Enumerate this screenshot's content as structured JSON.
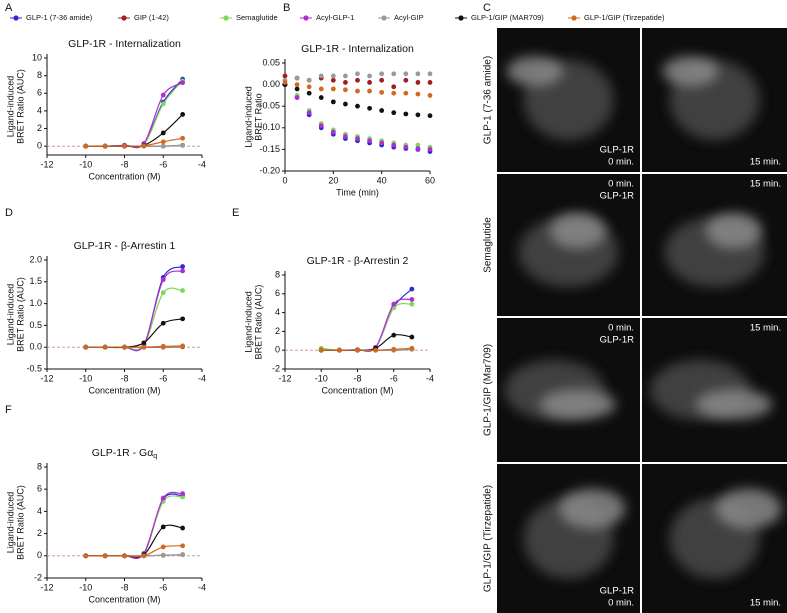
{
  "chart_data": [
    {
      "type": "line",
      "panel": "A",
      "title": "GLP-1R - Internalization",
      "xlabel": "Concentration  (M)",
      "ylabel": [
        "Ligand-induced",
        "BRET Ratio (AUC)"
      ],
      "x": [
        -10,
        -9,
        -8,
        -7,
        -6,
        -5
      ],
      "xlim": [
        -12,
        -4
      ],
      "xticks": [
        -12,
        -10,
        -8,
        -6,
        -4
      ],
      "ylim": [
        -1,
        10
      ],
      "yticks": [
        0,
        2,
        4,
        6,
        8,
        10
      ],
      "smooth": true,
      "zero_line": true,
      "series": [
        {
          "name": "GLP-1 (7-36 amide)",
          "color": "#2b2bd0",
          "values": [
            0,
            0,
            0.1,
            0.3,
            5.0,
            7.6
          ]
        },
        {
          "name": "GIP (1-42)",
          "color": "#a01e1e",
          "values": [
            0,
            0,
            0,
            0,
            0,
            0.1
          ]
        },
        {
          "name": "Semaglutide",
          "color": "#7fd858",
          "values": [
            0,
            0,
            0.1,
            0.2,
            4.8,
            7.4
          ]
        },
        {
          "name": "Acyl-GLP-1",
          "color": "#b02ed0",
          "values": [
            0,
            0,
            0.1,
            0.3,
            5.8,
            7.2
          ]
        },
        {
          "name": "Acyl-GIP",
          "color": "#9a9a9a",
          "values": [
            0,
            0,
            0,
            0,
            0,
            0.1
          ]
        },
        {
          "name": "GLP-1/GIP (MAR709)",
          "color": "#111111",
          "values": [
            0,
            0,
            0,
            0.1,
            1.5,
            3.6
          ]
        },
        {
          "name": "GLP-1/GIP (Tirzepatide)",
          "color": "#d2691e",
          "values": [
            0,
            0,
            0,
            0.05,
            0.5,
            0.9
          ]
        }
      ]
    },
    {
      "type": "scatter",
      "panel": "B",
      "title": "GLP-1R - Internalization",
      "xlabel": "Time (min)",
      "ylabel": [
        "Ligand-induced",
        "BRET Ratio"
      ],
      "x": [
        0,
        5,
        10,
        15,
        20,
        25,
        30,
        35,
        40,
        45,
        50,
        55,
        60
      ],
      "xlim": [
        0,
        60
      ],
      "xticks": [
        0,
        20,
        40,
        60
      ],
      "ylim": [
        -0.2,
        0.05
      ],
      "yticks": [
        {
          "value": -0.2,
          "label": "-0.20"
        },
        -0.15,
        {
          "value": -0.1,
          "label": "-0.10"
        },
        -0.05,
        {
          "value": 0,
          "label": "0.00"
        },
        0.05
      ],
      "zero_line": false,
      "series": [
        {
          "name": "GLP-1 (7-36 amide)",
          "color": "#2b2bd0",
          "values": [
            0,
            -0.03,
            -0.07,
            -0.1,
            -0.115,
            -0.125,
            -0.13,
            -0.135,
            -0.14,
            -0.145,
            -0.148,
            -0.15,
            -0.155
          ]
        },
        {
          "name": "GIP (1-42)",
          "color": "#a01e1e",
          "values": [
            0.02,
            0.015,
            0.01,
            0.015,
            0.01,
            0.005,
            0.01,
            0.005,
            0.01,
            -0.005,
            0.01,
            0.005,
            0.005
          ]
        },
        {
          "name": "Semaglutide",
          "color": "#7fd858",
          "values": [
            0,
            -0.025,
            -0.06,
            -0.09,
            -0.105,
            -0.115,
            -0.12,
            -0.125,
            -0.13,
            -0.135,
            -0.14,
            -0.14,
            -0.145
          ]
        },
        {
          "name": "Acyl-GLP-1",
          "color": "#b02ed0",
          "values": [
            0,
            -0.03,
            -0.065,
            -0.095,
            -0.11,
            -0.12,
            -0.125,
            -0.13,
            -0.135,
            -0.14,
            -0.145,
            -0.148,
            -0.15
          ]
        },
        {
          "name": "Acyl-GIP",
          "color": "#9a9a9a",
          "values": [
            0.01,
            0.015,
            0.01,
            0.02,
            0.02,
            0.02,
            0.025,
            0.02,
            0.025,
            0.025,
            0.025,
            0.025,
            0.025
          ]
        },
        {
          "name": "GLP-1/GIP (MAR709)",
          "color": "#111111",
          "values": [
            0,
            -0.01,
            -0.02,
            -0.03,
            -0.04,
            -0.045,
            -0.05,
            -0.055,
            -0.06,
            -0.065,
            -0.068,
            -0.07,
            -0.072
          ]
        },
        {
          "name": "GLP-1/GIP (Tirzepatide)",
          "color": "#d2691e",
          "values": [
            0.005,
            0,
            -0.005,
            -0.01,
            -0.01,
            -0.012,
            -0.015,
            -0.015,
            -0.018,
            -0.02,
            -0.02,
            -0.022,
            -0.025
          ]
        }
      ]
    },
    {
      "type": "line",
      "panel": "D",
      "title": "GLP-1R - β-Arrestin 1",
      "xlabel": "Concentration  (M)",
      "ylabel": [
        "Ligand-induced",
        "BRET Ratio (AUC)"
      ],
      "x": [
        -10,
        -9,
        -8,
        -7,
        -6,
        -5
      ],
      "xlim": [
        -12,
        -4
      ],
      "xticks": [
        -12,
        -10,
        -8,
        -6,
        -4
      ],
      "ylim": [
        -0.5,
        2.0
      ],
      "yticks": [
        -0.5,
        {
          "value": 0,
          "label": "0.0"
        },
        0.5,
        {
          "value": 1,
          "label": "1.0"
        },
        1.5,
        {
          "value": 2,
          "label": "2.0"
        }
      ],
      "smooth": true,
      "zero_line": true,
      "series": [
        {
          "name": "GLP-1 (7-36 amide)",
          "color": "#2b2bd0",
          "values": [
            0,
            0,
            0,
            0.05,
            1.6,
            1.85
          ]
        },
        {
          "name": "GIP (1-42)",
          "color": "#a01e1e",
          "values": [
            0,
            0,
            0,
            0,
            0,
            0.01
          ]
        },
        {
          "name": "Semaglutide",
          "color": "#7fd858",
          "values": [
            0,
            0,
            0,
            0.05,
            1.25,
            1.3
          ]
        },
        {
          "name": "Acyl-GLP-1",
          "color": "#b02ed0",
          "values": [
            0,
            0,
            0,
            0.05,
            1.55,
            1.75
          ]
        },
        {
          "name": "Acyl-GIP",
          "color": "#9a9a9a",
          "values": [
            0,
            0,
            0,
            0,
            0.01,
            0.02
          ]
        },
        {
          "name": "GLP-1/GIP (MAR709)",
          "color": "#111111",
          "values": [
            0,
            0,
            0,
            0.1,
            0.55,
            0.65
          ]
        },
        {
          "name": "GLP-1/GIP (Tirzepatide)",
          "color": "#d2691e",
          "values": [
            0,
            0,
            0,
            0,
            0.02,
            0.03
          ]
        }
      ]
    },
    {
      "type": "line",
      "panel": "E",
      "title": "GLP-1R - β-Arrestin 2",
      "xlabel": "Concentration  (M)",
      "ylabel": [
        "Ligand-induced",
        "BRET Ratio (AUC)"
      ],
      "x": [
        -10,
        -9,
        -8,
        -7,
        -6,
        -5
      ],
      "xlim": [
        -12,
        -4
      ],
      "xticks": [
        -12,
        -10,
        -8,
        -6,
        -4
      ],
      "ylim": [
        -2,
        8
      ],
      "yticks": [
        -2,
        0,
        2,
        4,
        6,
        8
      ],
      "smooth": true,
      "zero_line": true,
      "series": [
        {
          "name": "GLP-1 (7-36 amide)",
          "color": "#2b2bd0",
          "values": [
            0,
            0,
            0.05,
            0.3,
            4.6,
            6.5
          ]
        },
        {
          "name": "GIP (1-42)",
          "color": "#a01e1e",
          "values": [
            0,
            0,
            0,
            0,
            0,
            0.1
          ]
        },
        {
          "name": "Semaglutide",
          "color": "#7fd858",
          "values": [
            0.2,
            0,
            0.05,
            0.3,
            4.5,
            4.9
          ]
        },
        {
          "name": "Acyl-GLP-1",
          "color": "#b02ed0",
          "values": [
            0,
            0,
            0.05,
            0.3,
            4.9,
            5.4
          ]
        },
        {
          "name": "Acyl-GIP",
          "color": "#9a9a9a",
          "values": [
            0,
            0,
            0,
            0,
            0,
            0.1
          ]
        },
        {
          "name": "GLP-1/GIP (MAR709)",
          "color": "#111111",
          "values": [
            0,
            0,
            0,
            0.2,
            1.6,
            1.4
          ]
        },
        {
          "name": "GLP-1/GIP (Tirzepatide)",
          "color": "#d2691e",
          "values": [
            0,
            0,
            0,
            0,
            0.1,
            0.2
          ]
        }
      ]
    },
    {
      "type": "line",
      "panel": "F",
      "title": "GLP-1R - Gα",
      "title_subscript": "q",
      "xlabel": "Concentration  (M)",
      "ylabel": [
        "Ligand-induced",
        "BRET Ratio (AUC)"
      ],
      "x": [
        -10,
        -9,
        -8,
        -7,
        -6,
        -5
      ],
      "xlim": [
        -12,
        -4
      ],
      "xticks": [
        -12,
        -10,
        -8,
        -6,
        -4
      ],
      "ylim": [
        -2,
        8
      ],
      "yticks": [
        -2,
        0,
        2,
        4,
        6,
        8
      ],
      "smooth": true,
      "zero_line": true,
      "series": [
        {
          "name": "GLP-1 (7-36 amide)",
          "color": "#2b2bd0",
          "values": [
            0,
            0,
            0,
            0.2,
            5.1,
            5.4
          ]
        },
        {
          "name": "GIP (1-42)",
          "color": "#a01e1e",
          "values": [
            0,
            0,
            0,
            0,
            0.05,
            0.1
          ]
        },
        {
          "name": "Semaglutide",
          "color": "#7fd858",
          "values": [
            0,
            0,
            0,
            0.2,
            4.9,
            5.3
          ]
        },
        {
          "name": "Acyl-GLP-1",
          "color": "#b02ed0",
          "values": [
            0,
            0,
            0,
            0.2,
            5.2,
            5.6
          ]
        },
        {
          "name": "Acyl-GIP",
          "color": "#9a9a9a",
          "values": [
            0,
            0,
            0,
            0,
            0.05,
            0.1
          ]
        },
        {
          "name": "GLP-1/GIP (MAR709)",
          "color": "#111111",
          "values": [
            0,
            0,
            0,
            0.1,
            2.6,
            2.5
          ]
        },
        {
          "name": "GLP-1/GIP (Tirzepatide)",
          "color": "#d2691e",
          "values": [
            0,
            0,
            0,
            0,
            0.8,
            0.9
          ]
        }
      ]
    }
  ],
  "panel_c": {
    "letter": "C",
    "rows": [
      {
        "label": "GLP-1 (7-36 amide)",
        "cells": [
          [
            "GLP-1R",
            "0 min."
          ],
          [
            "15 min."
          ]
        ]
      },
      {
        "label": "Semaglutide",
        "cells": [
          [
            "0 min.",
            "GLP-1R"
          ],
          [
            "15 min."
          ]
        ]
      },
      {
        "label": "GLP-1/GIP (Mar709)",
        "cells": [
          [
            "0 min.",
            "GLP-1R"
          ],
          [
            "15 min."
          ]
        ]
      },
      {
        "label": "GLP-1/GIP (Tirzepatide)",
        "cells": [
          [
            "GLP-1R",
            "0 min."
          ],
          [
            "15 min."
          ]
        ]
      }
    ]
  }
}
